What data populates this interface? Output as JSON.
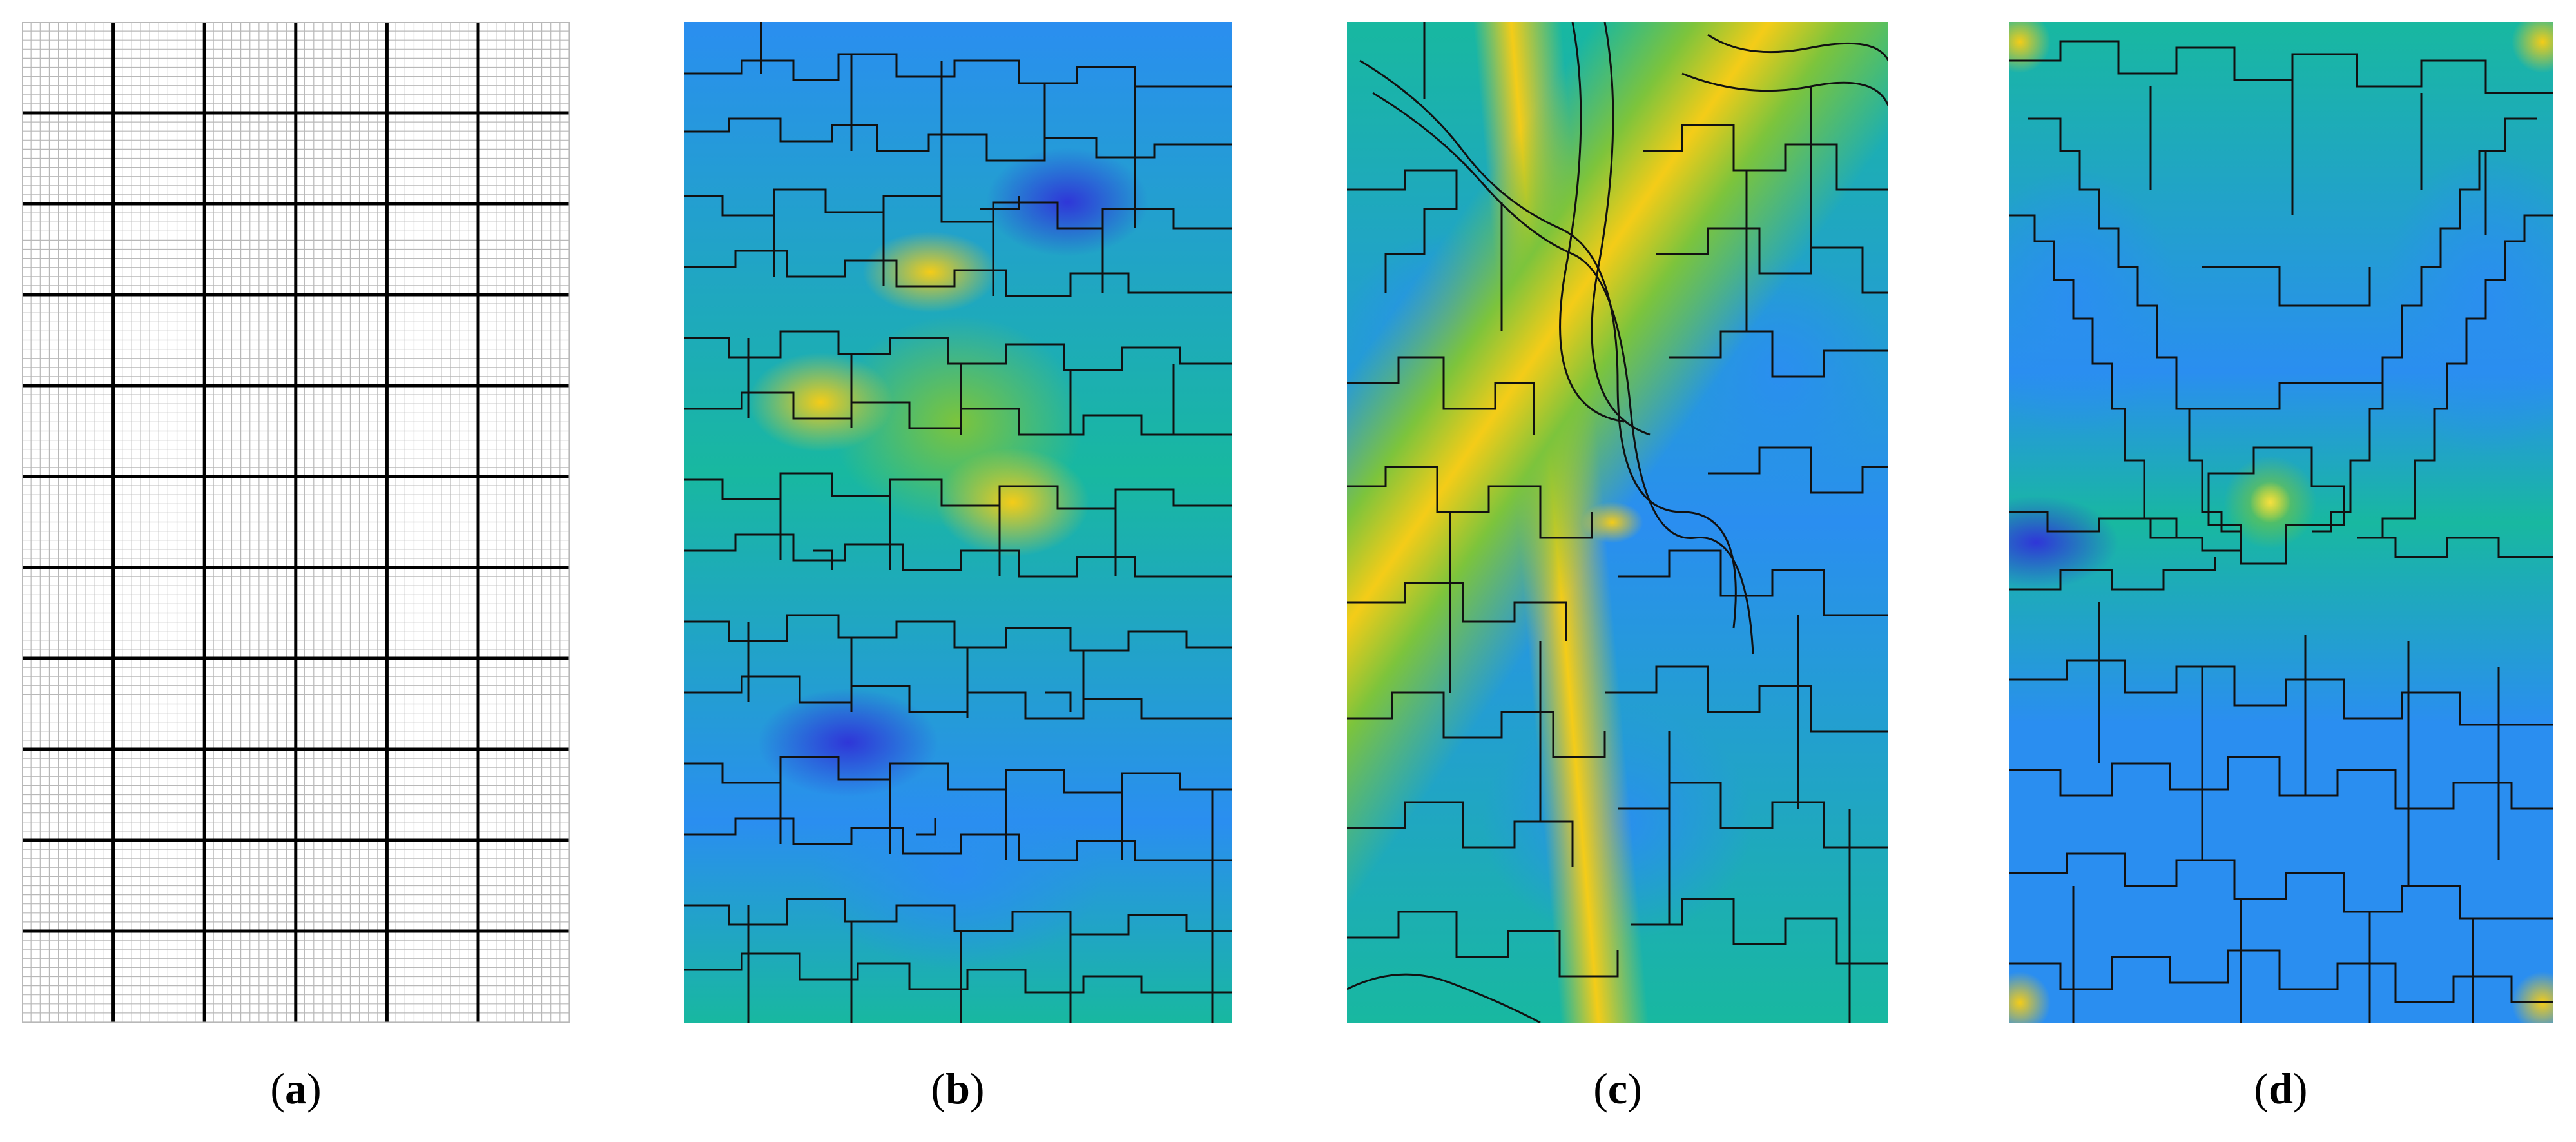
{
  "figure": {
    "panels": [
      {
        "id": "a",
        "label": "a",
        "content": "grid"
      },
      {
        "id": "b",
        "label": "b",
        "content": "partitioned-field"
      },
      {
        "id": "c",
        "label": "c",
        "content": "partitioned-field"
      },
      {
        "id": "d",
        "label": "d",
        "content": "partitioned-field"
      }
    ]
  },
  "colors": {
    "low": "#2f36d8",
    "mid_low": "#2a8ef0",
    "mid": "#18b8a0",
    "mid_high": "#7cc43c",
    "high": "#f4cc18",
    "outline": "#111111",
    "grid_fine": "#b8b8b8",
    "grid_coarse": "#000000"
  }
}
